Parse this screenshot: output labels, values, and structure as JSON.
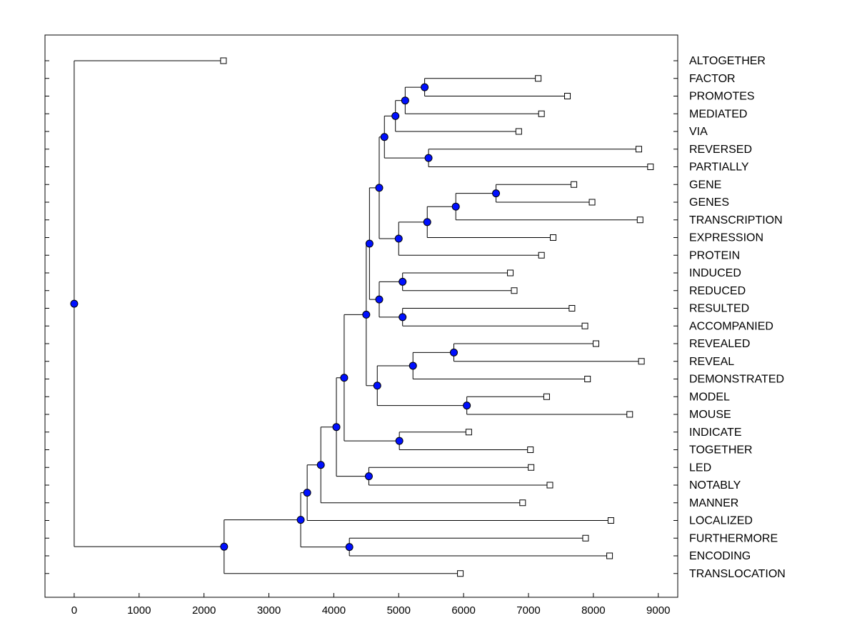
{
  "chart_data": {
    "type": "dendrogram",
    "title": "",
    "xlabel": "",
    "ylabel": "",
    "xlim": [
      -450,
      9300
    ],
    "x_ticks": [
      "0",
      "1000",
      "2000",
      "3000",
      "4000",
      "5000",
      "6000",
      "7000",
      "8000",
      "9000"
    ],
    "x_tick_values": [
      0,
      1000,
      2000,
      3000,
      4000,
      5000,
      6000,
      7000,
      8000,
      9000
    ],
    "grid": false,
    "leaf_order": [
      "ALTOGETHER",
      "FACTOR",
      "PROMOTES",
      "MEDIATED",
      "VIA",
      "REVERSED",
      "PARTIALLY",
      "GENE",
      "GENES",
      "TRANSCRIPTION",
      "EXPRESSION",
      "PROTEIN",
      "INDUCED",
      "REDUCED",
      "RESULTED",
      "ACCOMPANIED",
      "REVEALED",
      "REVEAL",
      "DEMONSTRATED",
      "MODEL",
      "MOUSE",
      "INDICATE",
      "TOGETHER",
      "LED",
      "NOTABLY",
      "MANNER",
      "LOCALIZED",
      "FURTHERMORE",
      "ENCODING",
      "TRANSLOCATION"
    ],
    "leaf_values": [
      2300,
      7150,
      7600,
      7200,
      6850,
      8700,
      8880,
      7700,
      7980,
      8720,
      7380,
      7200,
      6720,
      6780,
      7670,
      7870,
      8040,
      8740,
      7910,
      7280,
      8560,
      6080,
      7030,
      7040,
      7330,
      6910,
      8270,
      7880,
      8250,
      5950
    ],
    "merges": [
      {
        "id": "n_factor_promotes",
        "value": 5400,
        "children": [
          "FACTOR",
          "PROMOTES"
        ]
      },
      {
        "id": "n_fpm",
        "value": 5100,
        "children": [
          "n_factor_promotes",
          "MEDIATED"
        ]
      },
      {
        "id": "n_fpmv",
        "value": 4950,
        "children": [
          "n_fpm",
          "VIA"
        ]
      },
      {
        "id": "n_rev_part",
        "value": 5460,
        "children": [
          "REVERSED",
          "PARTIALLY"
        ]
      },
      {
        "id": "n_top7",
        "value": 4780,
        "children": [
          "n_fpmv",
          "n_rev_part"
        ]
      },
      {
        "id": "n_gene_genes",
        "value": 6500,
        "children": [
          "GENE",
          "GENES"
        ]
      },
      {
        "id": "n_ggt",
        "value": 5880,
        "children": [
          "n_gene_genes",
          "TRANSCRIPTION"
        ]
      },
      {
        "id": "n_ggte",
        "value": 5440,
        "children": [
          "n_ggt",
          "EXPRESSION"
        ]
      },
      {
        "id": "n_ggtep",
        "value": 5000,
        "children": [
          "n_ggte",
          "PROTEIN"
        ]
      },
      {
        "id": "n_top12",
        "value": 4700,
        "children": [
          "n_top7",
          "n_ggtep"
        ]
      },
      {
        "id": "n_ind_red",
        "value": 5060,
        "children": [
          "INDUCED",
          "REDUCED"
        ]
      },
      {
        "id": "n_res_acc",
        "value": 5060,
        "children": [
          "RESULTED",
          "ACCOMPANIED"
        ]
      },
      {
        "id": "n_irra",
        "value": 4700,
        "children": [
          "n_ind_red",
          "n_res_acc"
        ]
      },
      {
        "id": "n_top16",
        "value": 4550,
        "children": [
          "n_top12",
          "n_irra"
        ]
      },
      {
        "id": "n_rev_reveal",
        "value": 5850,
        "children": [
          "REVEALED",
          "REVEAL"
        ]
      },
      {
        "id": "n_rrd",
        "value": 5220,
        "children": [
          "n_rev_reveal",
          "DEMONSTRATED"
        ]
      },
      {
        "id": "n_model_mouse",
        "value": 6050,
        "children": [
          "MODEL",
          "MOUSE"
        ]
      },
      {
        "id": "n_rrdmm",
        "value": 4670,
        "children": [
          "n_rrd",
          "n_model_mouse"
        ]
      },
      {
        "id": "n_top21",
        "value": 4500,
        "children": [
          "n_top16",
          "n_rrdmm"
        ]
      },
      {
        "id": "n_ind_tog",
        "value": 5010,
        "children": [
          "INDICATE",
          "TOGETHER"
        ]
      },
      {
        "id": "n_top23",
        "value": 4160,
        "children": [
          "n_top21",
          "n_ind_tog"
        ]
      },
      {
        "id": "n_led_not",
        "value": 4540,
        "children": [
          "LED",
          "NOTABLY"
        ]
      },
      {
        "id": "n_top25",
        "value": 4040,
        "children": [
          "n_top23",
          "n_led_not"
        ]
      },
      {
        "id": "n_top26",
        "value": 3800,
        "children": [
          "n_top25",
          "MANNER"
        ]
      },
      {
        "id": "n_top27",
        "value": 3590,
        "children": [
          "n_top26",
          "LOCALIZED"
        ]
      },
      {
        "id": "n_fur_enc",
        "value": 4240,
        "children": [
          "FURTHERMORE",
          "ENCODING"
        ]
      },
      {
        "id": "n_top29",
        "value": 3490,
        "children": [
          "n_top27",
          "n_fur_enc"
        ]
      },
      {
        "id": "n_lower",
        "value": 2310,
        "children": [
          "n_top29",
          "TRANSLOCATION"
        ]
      },
      {
        "id": "n_root",
        "value": 0,
        "children": [
          "ALTOGETHER",
          "n_lower"
        ]
      }
    ],
    "colors": {
      "internal_node": "#0010ff",
      "leaf_marker": "#ffffff",
      "line": "#000000"
    }
  }
}
